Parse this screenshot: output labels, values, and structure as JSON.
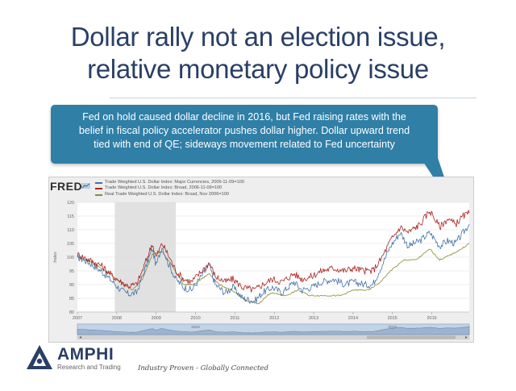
{
  "slide": {
    "title_line1": "Dollar rally not an election issue,",
    "title_line2": "relative monetary policy issue",
    "callout_line1": "Fed on hold caused dollar decline in 2016, but Fed raising rates with the",
    "callout_line2": "belief in fiscal policy accelerator pushes dollar higher. Dollar upward trend",
    "callout_line3": "tied with end of QE; sideways movement related to Fed uncertainty",
    "callout_color": "#2f7fa7",
    "title_color": "#2a3f66"
  },
  "footer": {
    "brand": "AMPHI",
    "brand_sub": "Research and Trading",
    "tagline": "Industry Proven - Globally Connected"
  },
  "chart_data": {
    "type": "line",
    "source": "FRED",
    "ylabel": "Index",
    "ylim": [
      80,
      120
    ],
    "yticks": [
      80,
      85,
      90,
      95,
      100,
      105,
      110,
      115,
      120
    ],
    "xlim": [
      2007.0,
      2016.95
    ],
    "xticks": [
      "2007",
      "2008",
      "2009",
      "2010",
      "2011",
      "2012",
      "2013",
      "2014",
      "2015",
      "2016"
    ],
    "recession": [
      2007.95,
      2009.5
    ],
    "series": [
      {
        "name": "Trade Weighted U.S. Dollar Index: Major Currencies, 2006-11-09=100",
        "color": "#4572a7",
        "points": [
          [
            2007.0,
            100
          ],
          [
            2007.3,
            98
          ],
          [
            2007.6,
            95
          ],
          [
            2007.9,
            91
          ],
          [
            2008.1,
            88
          ],
          [
            2008.3,
            86.5
          ],
          [
            2008.5,
            87
          ],
          [
            2008.65,
            93
          ],
          [
            2008.8,
            99
          ],
          [
            2008.9,
            103
          ],
          [
            2009.0,
            97
          ],
          [
            2009.15,
            104
          ],
          [
            2009.3,
            98
          ],
          [
            2009.5,
            92
          ],
          [
            2009.7,
            89
          ],
          [
            2009.9,
            88
          ],
          [
            2010.1,
            92
          ],
          [
            2010.35,
            97
          ],
          [
            2010.5,
            90
          ],
          [
            2010.75,
            87
          ],
          [
            2010.95,
            89
          ],
          [
            2011.2,
            85
          ],
          [
            2011.5,
            84
          ],
          [
            2011.7,
            87
          ],
          [
            2011.95,
            89
          ],
          [
            2012.2,
            87
          ],
          [
            2012.5,
            91
          ],
          [
            2012.7,
            88
          ],
          [
            2012.95,
            89
          ],
          [
            2013.2,
            91
          ],
          [
            2013.5,
            92
          ],
          [
            2013.8,
            90
          ],
          [
            2014.0,
            91
          ],
          [
            2014.3,
            90
          ],
          [
            2014.5,
            90
          ],
          [
            2014.7,
            96
          ],
          [
            2014.95,
            104
          ],
          [
            2015.2,
            109
          ],
          [
            2015.4,
            104
          ],
          [
            2015.7,
            106
          ],
          [
            2015.95,
            109
          ],
          [
            2016.2,
            104
          ],
          [
            2016.4,
            106
          ],
          [
            2016.6,
            105
          ],
          [
            2016.8,
            109
          ],
          [
            2016.95,
            112
          ]
        ]
      },
      {
        "name": "Trade Weighted U.S. Dollar Index: Broad, 2006-11-09=100",
        "color": "#aa2222",
        "points": [
          [
            2007.0,
            101
          ],
          [
            2007.3,
            99
          ],
          [
            2007.6,
            97
          ],
          [
            2007.9,
            93
          ],
          [
            2008.1,
            91
          ],
          [
            2008.3,
            89.5
          ],
          [
            2008.5,
            90
          ],
          [
            2008.65,
            95
          ],
          [
            2008.8,
            101
          ],
          [
            2008.9,
            105
          ],
          [
            2009.0,
            100
          ],
          [
            2009.15,
            105
          ],
          [
            2009.3,
            101
          ],
          [
            2009.5,
            95
          ],
          [
            2009.7,
            92
          ],
          [
            2009.9,
            91
          ],
          [
            2010.1,
            94
          ],
          [
            2010.35,
            98
          ],
          [
            2010.5,
            93
          ],
          [
            2010.75,
            91
          ],
          [
            2010.95,
            92
          ],
          [
            2011.2,
            89
          ],
          [
            2011.5,
            88
          ],
          [
            2011.7,
            90
          ],
          [
            2011.95,
            92
          ],
          [
            2012.2,
            91
          ],
          [
            2012.5,
            94
          ],
          [
            2012.7,
            92
          ],
          [
            2012.95,
            93
          ],
          [
            2013.2,
            95
          ],
          [
            2013.5,
            96
          ],
          [
            2013.8,
            95
          ],
          [
            2014.0,
            96
          ],
          [
            2014.3,
            95
          ],
          [
            2014.5,
            95
          ],
          [
            2014.7,
            99
          ],
          [
            2014.95,
            106
          ],
          [
            2015.2,
            111
          ],
          [
            2015.4,
            109
          ],
          [
            2015.7,
            112
          ],
          [
            2015.95,
            117
          ],
          [
            2016.2,
            111
          ],
          [
            2016.4,
            114
          ],
          [
            2016.6,
            112
          ],
          [
            2016.8,
            115
          ],
          [
            2016.95,
            116
          ]
        ]
      },
      {
        "name": "Real Trade Weighted U.S. Dollar Index: Broad, Nov 2006=100",
        "color": "#8a8a32",
        "points": [
          [
            2007.0,
            100
          ],
          [
            2007.4,
            98
          ],
          [
            2007.8,
            94
          ],
          [
            2008.1,
            91
          ],
          [
            2008.4,
            88
          ],
          [
            2008.65,
            92
          ],
          [
            2008.9,
            101
          ],
          [
            2009.15,
            102
          ],
          [
            2009.4,
            97
          ],
          [
            2009.7,
            90
          ],
          [
            2009.95,
            90
          ],
          [
            2010.35,
            94
          ],
          [
            2010.6,
            90
          ],
          [
            2010.9,
            88
          ],
          [
            2011.3,
            84
          ],
          [
            2011.6,
            83
          ],
          [
            2011.9,
            87
          ],
          [
            2012.3,
            86
          ],
          [
            2012.6,
            88
          ],
          [
            2012.9,
            86
          ],
          [
            2013.3,
            86
          ],
          [
            2013.7,
            86
          ],
          [
            2014.0,
            88
          ],
          [
            2014.4,
            88
          ],
          [
            2014.7,
            91
          ],
          [
            2014.95,
            95
          ],
          [
            2015.3,
            99
          ],
          [
            2015.6,
            99
          ],
          [
            2015.95,
            103
          ],
          [
            2016.2,
            99
          ],
          [
            2016.5,
            101
          ],
          [
            2016.75,
            103
          ],
          [
            2016.95,
            105
          ]
        ]
      }
    ],
    "navigator": {
      "labels": [
        "2010",
        "2015"
      ],
      "selection": [
        2007.0,
        2016.95
      ]
    }
  }
}
